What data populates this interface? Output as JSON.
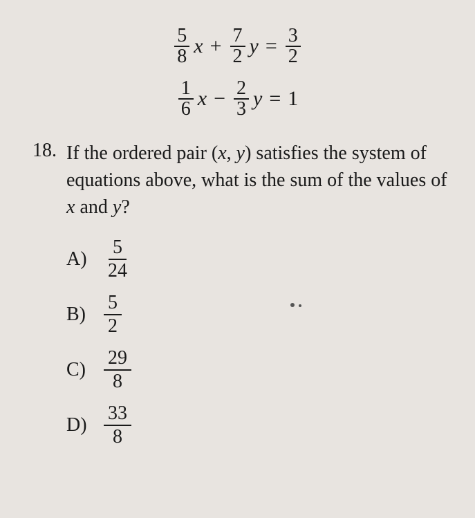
{
  "equations": {
    "eq1": {
      "term1": {
        "num": "5",
        "den": "8",
        "var": "x"
      },
      "op1": "+",
      "term2": {
        "num": "7",
        "den": "2",
        "var": "y"
      },
      "eq": "=",
      "rhs": {
        "num": "3",
        "den": "2"
      }
    },
    "eq2": {
      "term1": {
        "num": "1",
        "den": "6",
        "var": "x"
      },
      "op1": "−",
      "term2": {
        "num": "2",
        "den": "3",
        "var": "y"
      },
      "eq": "=",
      "rhs": "1"
    }
  },
  "question": {
    "number": "18.",
    "text_part1": "If the ordered pair (",
    "var1": "x",
    "comma": ", ",
    "var2": "y",
    "text_part2": ") satisfies the system of equations above, what is the sum of the values of ",
    "var3": "x",
    "and": " and ",
    "var4": "y",
    "qmark": "?"
  },
  "choices": {
    "A": {
      "label": "A)",
      "num": "5",
      "den": "24"
    },
    "B": {
      "label": "B)",
      "num": "5",
      "den": "2"
    },
    "C": {
      "label": "C)",
      "num": "29",
      "den": "8"
    },
    "D": {
      "label": "D)",
      "num": "33",
      "den": "8"
    }
  }
}
